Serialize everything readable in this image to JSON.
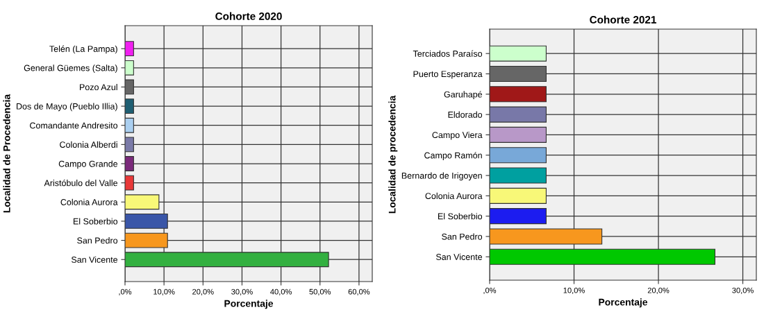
{
  "chart_data": [
    {
      "type": "bar",
      "orientation": "horizontal",
      "title": "Cohorte 2020",
      "xlabel": "Porcentaje",
      "ylabel": "Localidad de Procedencia",
      "categories": [
        "Telén (La Pampa)",
        "General Güemes (Salta)",
        "Pozo Azul",
        "Dos de Mayo (Pueblo Illia)",
        "Comandante Andresito",
        "Colonia Alberdi",
        "Campo Grande",
        "Aristóbulo del Valle",
        "Colonia Aurora",
        "El Soberbio",
        "San Pedro",
        "San Vicente"
      ],
      "values": [
        2.2,
        2.2,
        2.2,
        2.2,
        2.2,
        2.2,
        2.2,
        2.2,
        8.7,
        10.9,
        10.9,
        52.2
      ],
      "colors": [
        "#f020f0",
        "#ccffcc",
        "#666666",
        "#1f5f73",
        "#aacff0",
        "#7a7aa8",
        "#7b2a7b",
        "#e83838",
        "#f8f878",
        "#3a56a8",
        "#f7971e",
        "#33b040"
      ],
      "xlim": [
        0,
        63.4
      ],
      "xticks": [
        {
          "value": 0,
          "label": ",0%"
        },
        {
          "value": 10,
          "label": "10,0%"
        },
        {
          "value": 20,
          "label": "20,0%"
        },
        {
          "value": 30,
          "label": "30,0%"
        },
        {
          "value": 40,
          "label": "40,0%"
        },
        {
          "value": 50,
          "label": "50,0%"
        },
        {
          "value": 60,
          "label": "60,0%"
        }
      ],
      "grid": true
    },
    {
      "type": "bar",
      "orientation": "horizontal",
      "title": "Cohorte 2021",
      "xlabel": "Porcentaje",
      "ylabel": "Localidad de procedencia",
      "categories": [
        "Terciados Paraíso",
        "Puerto Esperanza",
        "Garuhapé",
        "Eldorado",
        "Campo Viera",
        "Campo Ramón",
        "Bernardo de Irigoyen",
        "Colonia Aurora",
        "El Soberbio",
        "San Pedro",
        "San Vicente"
      ],
      "values": [
        6.7,
        6.7,
        6.7,
        6.7,
        6.7,
        6.7,
        6.7,
        6.7,
        6.7,
        13.3,
        26.7
      ],
      "colors": [
        "#ccffcc",
        "#666666",
        "#a01818",
        "#7878a8",
        "#b898c8",
        "#78a8d8",
        "#00a0a0",
        "#f8f878",
        "#1c1cf0",
        "#f7971e",
        "#00c800"
      ],
      "xlim": [
        0,
        31.6
      ],
      "xticks": [
        {
          "value": 0,
          "label": ",0%"
        },
        {
          "value": 10,
          "label": "10,0%"
        },
        {
          "value": 20,
          "label": "20,0%"
        },
        {
          "value": 30,
          "label": "30,0%"
        }
      ],
      "grid": true
    }
  ]
}
